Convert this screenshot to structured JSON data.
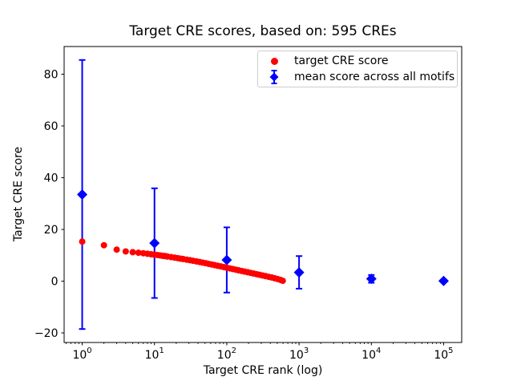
{
  "chart_data": {
    "type": "scatter",
    "title": "Target CRE scores, based on: 595 CREs",
    "xlabel": "Target CRE rank (log)",
    "ylabel": "Target CRE score",
    "xscale": "log",
    "xlim": [
      0.5623,
      177828
    ],
    "ylim": [
      -23.7,
      90.7
    ],
    "x_major_tick_base": "10",
    "x_major_tick_exponents": [
      0,
      1,
      2,
      3,
      4,
      5
    ],
    "y_ticks": [
      -20,
      0,
      20,
      40,
      60,
      80
    ],
    "y_tick_labels": [
      "−20",
      "0",
      "20",
      "40",
      "60",
      "80"
    ],
    "grid": false,
    "legend_position": "upper right",
    "series": [
      {
        "name": "mean score across all motifs",
        "type": "errorbar",
        "marker": "diamond",
        "color": "#0000ff",
        "x": [
          1,
          10,
          100,
          1000,
          10000,
          100000
        ],
        "mean": [
          33.5,
          14.7,
          8.2,
          3.4,
          0.9,
          0.1
        ],
        "err": [
          52.0,
          21.2,
          12.6,
          6.3,
          1.5,
          0.5
        ]
      },
      {
        "name": "target CRE score",
        "type": "scatter",
        "marker": "circle",
        "color": "#ff0000",
        "n_total": 595,
        "points": [
          [
            1,
            15.3
          ],
          [
            2,
            13.9
          ],
          [
            3,
            12.2
          ],
          [
            4,
            11.5
          ],
          [
            5,
            11.2
          ],
          [
            6,
            11.0
          ],
          [
            7,
            10.8
          ],
          [
            8,
            10.6
          ],
          [
            9,
            10.4
          ],
          [
            10,
            10.25
          ],
          [
            11,
            10.1
          ],
          [
            12,
            9.95
          ],
          [
            13,
            9.8
          ],
          [
            14,
            9.7
          ],
          [
            15,
            9.55
          ],
          [
            17,
            9.3
          ],
          [
            19,
            9.1
          ],
          [
            21,
            8.9
          ],
          [
            23,
            8.7
          ],
          [
            25,
            8.55
          ],
          [
            28,
            8.3
          ],
          [
            31,
            8.1
          ],
          [
            34,
            7.9
          ],
          [
            38,
            7.65
          ],
          [
            42,
            7.4
          ],
          [
            46,
            7.2
          ],
          [
            51,
            6.95
          ],
          [
            56,
            6.7
          ],
          [
            62,
            6.45
          ],
          [
            68,
            6.2
          ],
          [
            75,
            5.95
          ],
          [
            83,
            5.7
          ],
          [
            91,
            5.45
          ],
          [
            100,
            5.2
          ],
          [
            110,
            4.95
          ],
          [
            121,
            4.7
          ],
          [
            133,
            4.45
          ],
          [
            146,
            4.2
          ],
          [
            161,
            3.95
          ],
          [
            177,
            3.7
          ],
          [
            195,
            3.45
          ],
          [
            214,
            3.2
          ],
          [
            235,
            2.95
          ],
          [
            259,
            2.7
          ],
          [
            285,
            2.45
          ],
          [
            313,
            2.2
          ],
          [
            344,
            1.95
          ],
          [
            379,
            1.7
          ],
          [
            417,
            1.45
          ],
          [
            458,
            1.15
          ],
          [
            504,
            0.85
          ],
          [
            554,
            0.5
          ],
          [
            595,
            0.15
          ]
        ]
      }
    ]
  },
  "legend": {
    "entries": [
      {
        "label": "target CRE score",
        "color": "#ff0000",
        "marker": "circle"
      },
      {
        "label": "mean score across all motifs",
        "color": "#0000ff",
        "marker": "diamond-errorbar"
      }
    ]
  }
}
